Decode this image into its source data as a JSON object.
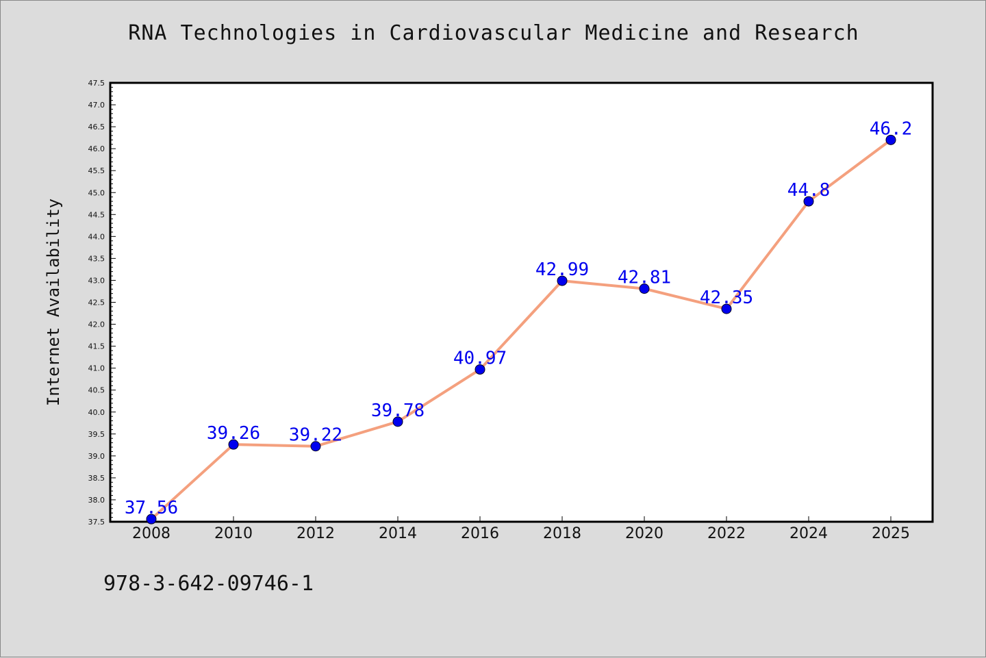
{
  "chart_data": {
    "type": "line",
    "title": "RNA Technologies in Cardiovascular Medicine and Research",
    "xlabel": "",
    "ylabel": "Internet Availability",
    "categories": [
      "2008",
      "2010",
      "2012",
      "2014",
      "2016",
      "2018",
      "2020",
      "2022",
      "2024",
      "2025"
    ],
    "series": [
      {
        "values": [
          37.56,
          39.26,
          39.22,
          39.78,
          40.97,
          42.99,
          42.81,
          42.35,
          44.8,
          46.2
        ],
        "labels": [
          "37.56",
          "39.26",
          "39.22",
          "39.78",
          "40.97",
          "42.99",
          "42.81",
          "42.35",
          "44.8",
          "46.2"
        ],
        "line_color": "#f4a07e",
        "marker_color": "#0000ee",
        "label_color": "#0000ee"
      }
    ],
    "ylim": [
      37.5,
      47.5
    ],
    "yticks": [
      "37.5",
      "38.0",
      "38.5",
      "39.0",
      "39.5",
      "40.0",
      "40.5",
      "41.0",
      "41.5",
      "42.0",
      "42.5",
      "43.0",
      "43.5",
      "44.0",
      "44.5",
      "45.0",
      "45.5",
      "46.0",
      "46.5",
      "47.0",
      "47.5"
    ],
    "grid": false,
    "legend": "none"
  },
  "footer": {
    "isbn": "978-3-642-09746-1"
  }
}
